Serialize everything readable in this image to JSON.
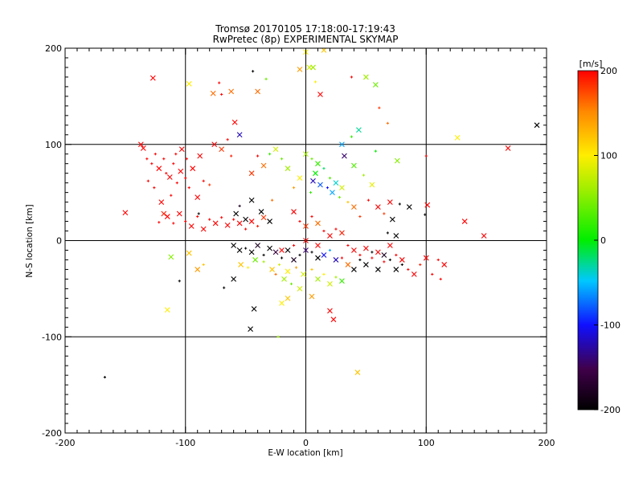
{
  "chart_data": {
    "type": "scatter",
    "title": "Tromsø 20170105 17:18:00-17:19:43",
    "subtitle": "RwPretec (8p) EXPERIMENTAL SKYMAP",
    "xlabel": "E-W location [km]",
    "ylabel": "N-S location [km]",
    "xlim": [
      -200,
      200
    ],
    "ylim": [
      -200,
      200
    ],
    "x_ticks": [
      "-200",
      "-100",
      "0",
      "100",
      "200"
    ],
    "y_ticks": [
      "-200",
      "-100",
      "0",
      "100",
      "200"
    ],
    "grid": true,
    "colorbar": {
      "label": "[m/s]",
      "range": [
        -200,
        200
      ],
      "ticks": [
        "-200",
        "-100",
        "0",
        "100",
        "200"
      ],
      "colormap": "rainbow"
    },
    "points": [
      [
        192,
        120,
        -200,
        "x"
      ],
      [
        168,
        96,
        200,
        "x"
      ],
      [
        126,
        107,
        100,
        "x"
      ],
      [
        148,
        5,
        200,
        "x"
      ],
      [
        132,
        20,
        200,
        "x"
      ],
      [
        101,
        37,
        200,
        "x"
      ],
      [
        100,
        88,
        200,
        "+"
      ],
      [
        99,
        27,
        -200,
        "+"
      ],
      [
        -150,
        29,
        200,
        "x"
      ],
      [
        -137,
        100,
        200,
        "x"
      ],
      [
        -135,
        96,
        200,
        "x"
      ],
      [
        -132,
        85,
        200,
        "+"
      ],
      [
        -128,
        80,
        200,
        "+"
      ],
      [
        -125,
        90,
        200,
        "+"
      ],
      [
        -122,
        75,
        200,
        "x"
      ],
      [
        -118,
        85,
        200,
        "+"
      ],
      [
        -116,
        70,
        200,
        "+"
      ],
      [
        -113,
        66,
        200,
        "x"
      ],
      [
        -110,
        80,
        200,
        "+"
      ],
      [
        -107,
        60,
        200,
        "+"
      ],
      [
        -104,
        72,
        200,
        "x"
      ],
      [
        -100,
        65,
        200,
        "+"
      ],
      [
        -97,
        55,
        200,
        "+"
      ],
      [
        -94,
        75,
        200,
        "x"
      ],
      [
        -131,
        62,
        200,
        "+"
      ],
      [
        -126,
        55,
        200,
        "+"
      ],
      [
        -120,
        40,
        200,
        "x"
      ],
      [
        -112,
        47,
        200,
        "+"
      ],
      [
        -108,
        90,
        200,
        "+"
      ],
      [
        -103,
        95,
        200,
        "x"
      ],
      [
        -99,
        85,
        200,
        "+"
      ],
      [
        -90,
        45,
        200,
        "x"
      ],
      [
        -88,
        88,
        200,
        "x"
      ],
      [
        -85,
        62,
        200,
        "+"
      ],
      [
        -80,
        58,
        180,
        "+"
      ],
      [
        -76,
        100,
        200,
        "x"
      ],
      [
        -70,
        95,
        180,
        "x"
      ],
      [
        -65,
        105,
        200,
        "+"
      ],
      [
        -62,
        88,
        190,
        "+"
      ],
      [
        -59,
        123,
        200,
        "x"
      ],
      [
        -55,
        110,
        -120,
        "x"
      ],
      [
        -115,
        25,
        200,
        "x"
      ],
      [
        -110,
        18,
        200,
        "+"
      ],
      [
        -105,
        28,
        200,
        "x"
      ],
      [
        -100,
        20,
        200,
        "+"
      ],
      [
        -95,
        15,
        200,
        "x"
      ],
      [
        -90,
        25,
        200,
        "+"
      ],
      [
        -85,
        12,
        200,
        "x"
      ],
      [
        -80,
        22,
        200,
        "+"
      ],
      [
        -75,
        18,
        200,
        "x"
      ],
      [
        -70,
        24,
        200,
        "+"
      ],
      [
        -65,
        16,
        200,
        "x"
      ],
      [
        -60,
        22,
        200,
        "+"
      ],
      [
        -55,
        18,
        200,
        "x"
      ],
      [
        -50,
        12,
        200,
        "+"
      ],
      [
        -45,
        20,
        200,
        "x"
      ],
      [
        -40,
        15,
        190,
        "+"
      ],
      [
        -35,
        24,
        180,
        "x"
      ],
      [
        -89,
        28,
        -200,
        "+"
      ],
      [
        -122,
        19,
        200,
        "+"
      ],
      [
        -118,
        28,
        190,
        "x"
      ],
      [
        -127,
        169,
        200,
        "x"
      ],
      [
        -97,
        163,
        100,
        "x"
      ],
      [
        -77,
        153,
        160,
        "x"
      ],
      [
        -70,
        152,
        200,
        "+"
      ],
      [
        -62,
        155,
        160,
        "x"
      ],
      [
        -72,
        164,
        200,
        "+"
      ],
      [
        -44,
        176,
        -200,
        "+"
      ],
      [
        -40,
        155,
        160,
        "x"
      ],
      [
        -33,
        168,
        40,
        "+"
      ],
      [
        -3,
        207,
        80,
        "x"
      ],
      [
        0,
        196,
        100,
        "x"
      ],
      [
        3,
        180,
        80,
        "x"
      ],
      [
        6,
        180,
        60,
        "x"
      ],
      [
        -5,
        178,
        140,
        "x"
      ],
      [
        8,
        165,
        100,
        "+"
      ],
      [
        12,
        152,
        200,
        "x"
      ],
      [
        15,
        198,
        120,
        "x"
      ],
      [
        38,
        170,
        200,
        "+"
      ],
      [
        61,
        138,
        180,
        "+"
      ],
      [
        68,
        122,
        160,
        "+"
      ],
      [
        76,
        83,
        50,
        "x"
      ],
      [
        50,
        170,
        60,
        "x"
      ],
      [
        58,
        162,
        40,
        "x"
      ],
      [
        0,
        90,
        60,
        "x"
      ],
      [
        5,
        85,
        40,
        "+"
      ],
      [
        10,
        80,
        20,
        "x"
      ],
      [
        15,
        75,
        -20,
        "+"
      ],
      [
        8,
        70,
        0,
        "x"
      ],
      [
        20,
        65,
        30,
        "+"
      ],
      [
        25,
        60,
        -40,
        "x"
      ],
      [
        12,
        58,
        -80,
        "x"
      ],
      [
        18,
        55,
        -100,
        "+"
      ],
      [
        22,
        50,
        -60,
        "x"
      ],
      [
        28,
        45,
        40,
        "+"
      ],
      [
        6,
        62,
        -120,
        "x"
      ],
      [
        4,
        50,
        20,
        "+"
      ],
      [
        30,
        55,
        80,
        "x"
      ],
      [
        35,
        40,
        120,
        "+"
      ],
      [
        40,
        35,
        160,
        "x"
      ],
      [
        45,
        25,
        180,
        "+"
      ],
      [
        -5,
        65,
        100,
        "x"
      ],
      [
        -10,
        55,
        140,
        "+"
      ],
      [
        -15,
        75,
        60,
        "x"
      ],
      [
        -20,
        85,
        40,
        "+"
      ],
      [
        -25,
        95,
        80,
        "x"
      ],
      [
        -30,
        90,
        20,
        "+"
      ],
      [
        -35,
        78,
        160,
        "x"
      ],
      [
        -40,
        88,
        200,
        "+"
      ],
      [
        -45,
        70,
        180,
        "x"
      ],
      [
        -28,
        42,
        160,
        "+"
      ],
      [
        32,
        88,
        -140,
        "x"
      ],
      [
        40,
        78,
        30,
        "x"
      ],
      [
        48,
        68,
        60,
        "+"
      ],
      [
        55,
        58,
        90,
        "x"
      ],
      [
        52,
        42,
        200,
        "+"
      ],
      [
        60,
        35,
        200,
        "x"
      ],
      [
        65,
        28,
        180,
        "+"
      ],
      [
        70,
        40,
        200,
        "x"
      ],
      [
        58,
        93,
        0,
        "+"
      ],
      [
        44,
        115,
        -30,
        "x"
      ],
      [
        38,
        108,
        20,
        "+"
      ],
      [
        30,
        100,
        -60,
        "x"
      ],
      [
        -10,
        30,
        200,
        "x"
      ],
      [
        -5,
        20,
        200,
        "+"
      ],
      [
        0,
        15,
        180,
        "x"
      ],
      [
        5,
        25,
        200,
        "+"
      ],
      [
        10,
        18,
        160,
        "x"
      ],
      [
        15,
        10,
        200,
        "+"
      ],
      [
        20,
        5,
        200,
        "x"
      ],
      [
        25,
        12,
        200,
        "+"
      ],
      [
        30,
        8,
        190,
        "x"
      ],
      [
        35,
        -5,
        200,
        "+"
      ],
      [
        40,
        -10,
        200,
        "x"
      ],
      [
        45,
        -15,
        200,
        "+"
      ],
      [
        50,
        -8,
        200,
        "x"
      ],
      [
        55,
        -18,
        200,
        "+"
      ],
      [
        60,
        -12,
        200,
        "x"
      ],
      [
        65,
        -22,
        200,
        "+"
      ],
      [
        70,
        -5,
        200,
        "x"
      ],
      [
        75,
        -15,
        200,
        "+"
      ],
      [
        80,
        -20,
        200,
        "x"
      ],
      [
        85,
        -30,
        200,
        "+"
      ],
      [
        90,
        -35,
        200,
        "x"
      ],
      [
        95,
        -25,
        190,
        "+"
      ],
      [
        100,
        -18,
        200,
        "x"
      ],
      [
        110,
        -20,
        200,
        "+"
      ],
      [
        115,
        -25,
        200,
        "x"
      ],
      [
        105,
        -35,
        200,
        "+"
      ],
      [
        112,
        -40,
        200,
        "+"
      ],
      [
        -60,
        -5,
        -200,
        "x"
      ],
      [
        -55,
        -10,
        -200,
        "x"
      ],
      [
        -50,
        -8,
        -200,
        "+"
      ],
      [
        -45,
        -12,
        -200,
        "x"
      ],
      [
        -40,
        -5,
        -180,
        "x"
      ],
      [
        -35,
        -15,
        -200,
        "+"
      ],
      [
        -30,
        -8,
        -200,
        "x"
      ],
      [
        -25,
        -12,
        -160,
        "x"
      ],
      [
        -20,
        -18,
        -200,
        "+"
      ],
      [
        -15,
        -10,
        -200,
        "x"
      ],
      [
        -10,
        -20,
        -180,
        "x"
      ],
      [
        -5,
        -15,
        -200,
        "+"
      ],
      [
        0,
        -10,
        -140,
        "x"
      ],
      [
        5,
        -12,
        -200,
        "+"
      ],
      [
        10,
        -18,
        -200,
        "x"
      ],
      [
        -58,
        28,
        -200,
        "x"
      ],
      [
        -50,
        22,
        -200,
        "x"
      ],
      [
        -55,
        36,
        -180,
        "+"
      ],
      [
        -45,
        42,
        -200,
        "x"
      ],
      [
        -37,
        30,
        -200,
        "x"
      ],
      [
        -30,
        20,
        -200,
        "x"
      ],
      [
        -54,
        -25,
        120,
        "x"
      ],
      [
        -48,
        -28,
        100,
        "+"
      ],
      [
        -42,
        -20,
        40,
        "x"
      ],
      [
        -35,
        -22,
        60,
        "+"
      ],
      [
        -28,
        -30,
        120,
        "x"
      ],
      [
        -22,
        -25,
        80,
        "+"
      ],
      [
        -15,
        -32,
        100,
        "x"
      ],
      [
        -8,
        -28,
        140,
        "+"
      ],
      [
        -2,
        -35,
        80,
        "x"
      ],
      [
        5,
        -30,
        120,
        "+"
      ],
      [
        10,
        -40,
        60,
        "x"
      ],
      [
        15,
        -35,
        100,
        "+"
      ],
      [
        20,
        -45,
        80,
        "x"
      ],
      [
        25,
        -38,
        60,
        "+"
      ],
      [
        30,
        -42,
        20,
        "x"
      ],
      [
        -18,
        -40,
        60,
        "x"
      ],
      [
        -12,
        -45,
        40,
        "+"
      ],
      [
        -5,
        -50,
        80,
        "x"
      ],
      [
        -25,
        -35,
        160,
        "+"
      ],
      [
        -20,
        -10,
        200,
        "x"
      ],
      [
        -10,
        -5,
        200,
        "+"
      ],
      [
        0,
        0,
        200,
        "x"
      ],
      [
        10,
        -5,
        200,
        "x"
      ],
      [
        15,
        -15,
        -100,
        "x"
      ],
      [
        20,
        -10,
        -60,
        "+"
      ],
      [
        25,
        -20,
        -120,
        "x"
      ],
      [
        30,
        -18,
        200,
        "+"
      ],
      [
        35,
        -25,
        160,
        "x"
      ],
      [
        40,
        -30,
        -200,
        "x"
      ],
      [
        45,
        -20,
        -200,
        "+"
      ],
      [
        50,
        -25,
        -200,
        "x"
      ],
      [
        55,
        -12,
        -200,
        "+"
      ],
      [
        60,
        -30,
        -200,
        "x"
      ],
      [
        65,
        -15,
        -180,
        "x"
      ],
      [
        70,
        -20,
        -200,
        "+"
      ],
      [
        75,
        -30,
        -200,
        "x"
      ],
      [
        80,
        -25,
        -200,
        "+"
      ],
      [
        75,
        5,
        -200,
        "x"
      ],
      [
        68,
        8,
        -200,
        "+"
      ],
      [
        72,
        22,
        -200,
        "x"
      ],
      [
        78,
        38,
        -200,
        "+"
      ],
      [
        86,
        35,
        -200,
        "x"
      ],
      [
        -112,
        -17,
        50,
        "x"
      ],
      [
        -97,
        -13,
        120,
        "x"
      ],
      [
        -115,
        -72,
        100,
        "x"
      ],
      [
        -105,
        -42,
        -200,
        "+"
      ],
      [
        -68,
        -49,
        -200,
        "+"
      ],
      [
        -60,
        -40,
        -200,
        "x"
      ],
      [
        -43,
        -71,
        -200,
        "x"
      ],
      [
        -46,
        -92,
        -200,
        "x"
      ],
      [
        -20,
        -65,
        100,
        "x"
      ],
      [
        -23,
        -100,
        60,
        "+"
      ],
      [
        -15,
        -60,
        120,
        "x"
      ],
      [
        5,
        -58,
        140,
        "x"
      ],
      [
        20,
        -73,
        200,
        "x"
      ],
      [
        23,
        -82,
        200,
        "x"
      ],
      [
        43,
        -137,
        120,
        "x"
      ],
      [
        -167,
        -142,
        -200,
        "+"
      ],
      [
        -90,
        -30,
        140,
        "x"
      ],
      [
        -85,
        -25,
        120,
        "+"
      ]
    ]
  }
}
